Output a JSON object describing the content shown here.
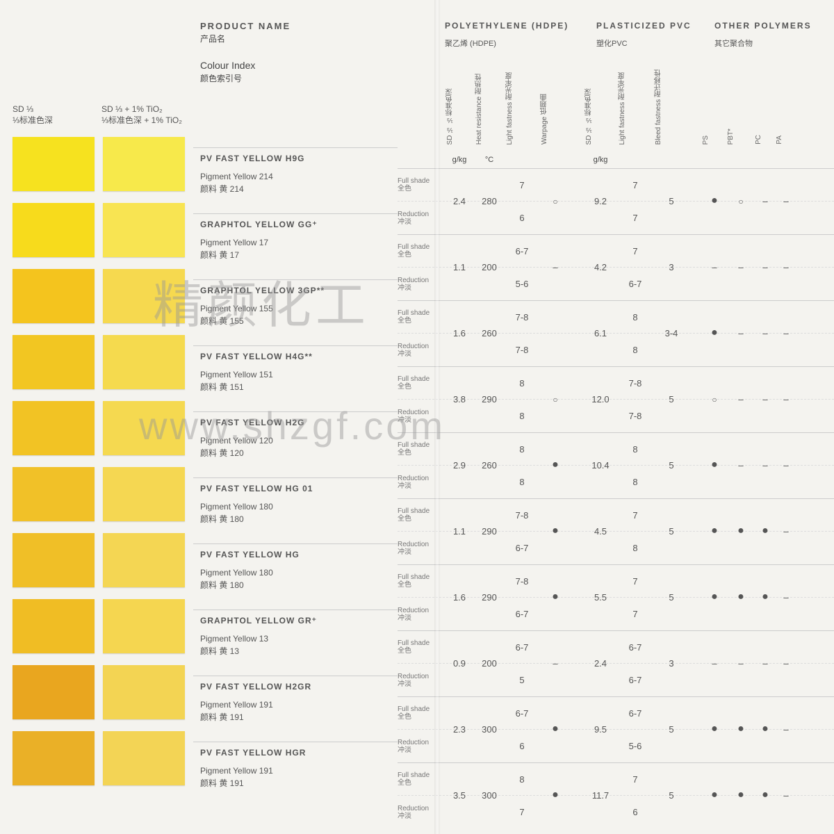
{
  "headers": {
    "sd_label": "SD ⅓",
    "sd_label_zh": "⅓标准色深",
    "sd_tio_label": "SD ⅓ + 1% TiO₂",
    "sd_tio_label_zh": "⅓标准色深 + 1% TiO₂",
    "product_name": "PRODUCT NAME",
    "product_name_zh": "产品名",
    "colour_index": "Colour Index",
    "colour_index_zh": "颜色索引号",
    "hdpe": "POLYETHYLENE (HDPE)",
    "hdpe_zh": "聚乙烯 (HDPE)",
    "pvc": "PLASTICIZED PVC",
    "pvc_zh": "塑化PVC",
    "other": "OTHER POLYMERS",
    "other_zh": "其它聚合物",
    "col_sd": "SD ⅓\n⅓标准色深",
    "col_heat": "Heat resistance\n耐热性",
    "col_light": "Light fastness\n耐光牢度",
    "col_warp": "Warpage\n低翘曲",
    "col_bleed": "Bleed fastness\n耐迁移性",
    "col_ps": "PS",
    "col_pbt": "PBT*",
    "col_pc": "PC",
    "col_pa": "PA",
    "unit_gkg": "g/kg",
    "unit_c": "°C",
    "full_shade": "Full shade",
    "full_shade_zh": "全色",
    "reduction": "Reduction",
    "reduction_zh": "冲淡"
  },
  "watermark1": "精颜化工",
  "watermark2": "www.shzgf.com",
  "rows": [
    {
      "name": "PV FAST YELLOW H9G",
      "ci": "Pigment Yellow 214",
      "ci_zh": "颜料 黄 214",
      "sw1": "#f6e21f",
      "sw2": "#f7e94b",
      "sd": "2.4",
      "heat": "280",
      "lf_f": "7",
      "lf_r": "6",
      "warp": "○",
      "sd2": "9.2",
      "lf2_f": "7",
      "lf2_r": "7",
      "bleed": "5",
      "ps": "●",
      "pbt": "○",
      "pc": "–",
      "pa": "–"
    },
    {
      "name": "GRAPHTOL YELLOW GG⁺",
      "ci": "Pigment Yellow 17",
      "ci_zh": "颜料 黄 17",
      "sw1": "#f7db1c",
      "sw2": "#f8e452",
      "sd": "1.1",
      "heat": "200",
      "lf_f": "6-7",
      "lf_r": "5-6",
      "warp": "–",
      "sd2": "4.2",
      "lf2_f": "7",
      "lf2_r": "6-7",
      "bleed": "3",
      "ps": "–",
      "pbt": "–",
      "pc": "–",
      "pa": "–"
    },
    {
      "name": "GRAPHTOL YELLOW 3GP**",
      "ci": "Pigment Yellow 155",
      "ci_zh": "颜料 黄 155",
      "sw1": "#f4c41e",
      "sw2": "#f6d94f",
      "sd": "1.6",
      "heat": "260",
      "lf_f": "7-8",
      "lf_r": "7-8",
      "warp": "",
      "sd2": "6.1",
      "lf2_f": "8",
      "lf2_r": "8",
      "bleed": "3-4",
      "ps": "●",
      "pbt": "–",
      "pc": "–",
      "pa": "–"
    },
    {
      "name": "PV FAST YELLOW H4G**",
      "ci": "Pigment Yellow 151",
      "ci_zh": "颜料 黄 151",
      "sw1": "#f2c622",
      "sw2": "#f5da4e",
      "sd": "3.8",
      "heat": "290",
      "lf_f": "8",
      "lf_r": "8",
      "warp": "○",
      "sd2": "12.0",
      "lf2_f": "7-8",
      "lf2_r": "7-8",
      "bleed": "5",
      "ps": "○",
      "pbt": "–",
      "pc": "–",
      "pa": "–"
    },
    {
      "name": "PV FAST YELLOW H2G",
      "ci": "Pigment Yellow 120",
      "ci_zh": "颜料 黄 120",
      "sw1": "#f2c324",
      "sw2": "#f5d950",
      "sd": "2.9",
      "heat": "260",
      "lf_f": "8",
      "lf_r": "8",
      "warp": "●",
      "sd2": "10.4",
      "lf2_f": "8",
      "lf2_r": "8",
      "bleed": "5",
      "ps": "●",
      "pbt": "–",
      "pc": "–",
      "pa": "–"
    },
    {
      "name": "PV FAST YELLOW HG 01",
      "ci": "Pigment Yellow 180",
      "ci_zh": "颜料 黄 180",
      "sw1": "#f1c128",
      "sw2": "#f5d752",
      "sd": "1.1",
      "heat": "290",
      "lf_f": "7-8",
      "lf_r": "6-7",
      "warp": "●",
      "sd2": "4.5",
      "lf2_f": "7",
      "lf2_r": "8",
      "bleed": "5",
      "ps": "●",
      "pbt": "●",
      "pc": "●",
      "pa": "–"
    },
    {
      "name": "PV FAST YELLOW HG",
      "ci": "Pigment Yellow 180",
      "ci_zh": "颜料 黄 180",
      "sw1": "#f0bf27",
      "sw2": "#f4d653",
      "sd": "1.6",
      "heat": "290",
      "lf_f": "7-8",
      "lf_r": "6-7",
      "warp": "●",
      "sd2": "5.5",
      "lf2_f": "7",
      "lf2_r": "7",
      "bleed": "5",
      "ps": "●",
      "pbt": "●",
      "pc": "●",
      "pa": "–"
    },
    {
      "name": "GRAPHTOL YELLOW GR⁺",
      "ci": "Pigment Yellow 13",
      "ci_zh": "颜料 黄 13",
      "sw1": "#f0bd24",
      "sw2": "#f5d650",
      "sd": "0.9",
      "heat": "200",
      "lf_f": "6-7",
      "lf_r": "5",
      "warp": "–",
      "sd2": "2.4",
      "lf2_f": "6-7",
      "lf2_r": "6-7",
      "bleed": "3",
      "ps": "–",
      "pbt": "–",
      "pc": "–",
      "pa": "–"
    },
    {
      "name": "PV FAST YELLOW H2GR",
      "ci": "Pigment Yellow 191",
      "ci_zh": "颜料 黄 191",
      "sw1": "#e9a61f",
      "sw2": "#f3d453",
      "sd": "2.3",
      "heat": "300",
      "lf_f": "6-7",
      "lf_r": "6",
      "warp": "●",
      "sd2": "9.5",
      "lf2_f": "6-7",
      "lf2_r": "5-6",
      "bleed": "5",
      "ps": "●",
      "pbt": "●",
      "pc": "●",
      "pa": "–"
    },
    {
      "name": "PV FAST YELLOW HGR",
      "ci": "Pigment Yellow 191",
      "ci_zh": "颜料 黄 191",
      "sw1": "#eab027",
      "sw2": "#f3d455",
      "sd": "3.5",
      "heat": "300",
      "lf_f": "8",
      "lf_r": "7",
      "warp": "●",
      "sd2": "11.7",
      "lf2_f": "7",
      "lf2_r": "6",
      "bleed": "5",
      "ps": "●",
      "pbt": "●",
      "pc": "●",
      "pa": "–"
    }
  ]
}
